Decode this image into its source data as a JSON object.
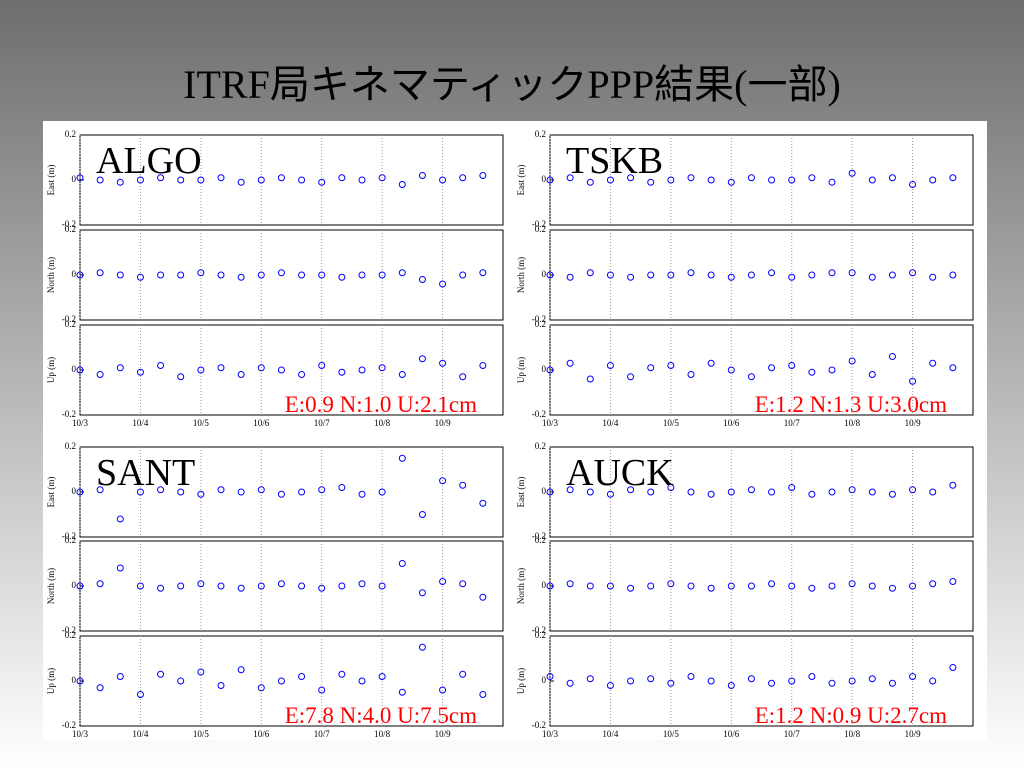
{
  "title": "ITRF局キネマティックPPP結果(一部)",
  "chart_data": [
    {
      "type": "scatter",
      "annotation": "ALGO",
      "ylabel": "East (m)",
      "color": "#0000ff",
      "xlim": [
        0,
        168
      ],
      "xticks": [
        0,
        24,
        48,
        72,
        96,
        120,
        144
      ],
      "ylim": [
        -0.2,
        0.2
      ],
      "yticks": [
        0.2,
        0,
        -0.2
      ],
      "x": [
        0,
        8,
        16,
        24,
        32,
        40,
        48,
        56,
        64,
        72,
        80,
        88,
        96,
        104,
        112,
        120,
        128,
        136,
        144,
        152,
        160
      ],
      "values": [
        0.01,
        0,
        -0.01,
        0,
        0.01,
        0,
        0,
        0.01,
        -0.01,
        0,
        0.01,
        0,
        -0.01,
        0.01,
        0,
        0.01,
        -0.02,
        0.02,
        0,
        0.01,
        0.02
      ]
    },
    {
      "type": "scatter",
      "ylabel": "North (m)",
      "color": "#0000ff",
      "xlim": [
        0,
        168
      ],
      "xticks": [
        0,
        24,
        48,
        72,
        96,
        120,
        144
      ],
      "ylim": [
        -0.2,
        0.2
      ],
      "yticks": [
        0.2,
        0,
        -0.2
      ],
      "x": [
        0,
        8,
        16,
        24,
        32,
        40,
        48,
        56,
        64,
        72,
        80,
        88,
        96,
        104,
        112,
        120,
        128,
        136,
        144,
        152,
        160
      ],
      "values": [
        0,
        0.01,
        0,
        -0.01,
        0,
        0,
        0.01,
        0,
        -0.01,
        0,
        0.01,
        0,
        0,
        -0.01,
        0,
        0,
        0.01,
        -0.02,
        -0.04,
        0,
        0.01
      ]
    },
    {
      "type": "scatter",
      "annotation": "E:0.9 N:1.0 U:2.1cm",
      "ylabel": "Up (m)",
      "color": "#0000ff",
      "xlim": [
        0,
        168
      ],
      "xticks": [
        {
          "value": 0,
          "label": "10/3"
        },
        {
          "value": 24,
          "label": "10/4"
        },
        {
          "value": 48,
          "label": "10/5"
        },
        {
          "value": 72,
          "label": "10/6"
        },
        {
          "value": 96,
          "label": "10/7"
        },
        {
          "value": 120,
          "label": "10/8"
        },
        {
          "value": 144,
          "label": "10/9"
        }
      ],
      "ylim": [
        -0.2,
        0.2
      ],
      "yticks": [
        0.2,
        0,
        -0.2
      ],
      "x": [
        0,
        8,
        16,
        24,
        32,
        40,
        48,
        56,
        64,
        72,
        80,
        88,
        96,
        104,
        112,
        120,
        128,
        136,
        144,
        152,
        160
      ],
      "values": [
        0,
        -0.02,
        0.01,
        -0.01,
        0.02,
        -0.03,
        0,
        0.01,
        -0.02,
        0.01,
        0,
        -0.02,
        0.02,
        -0.01,
        0,
        0.01,
        -0.02,
        0.05,
        0.03,
        -0.03,
        0.02
      ]
    },
    {
      "type": "scatter",
      "annotation": "TSKB",
      "ylabel": "East (m)",
      "color": "#0000ff",
      "xlim": [
        0,
        168
      ],
      "xticks": [
        0,
        24,
        48,
        72,
        96,
        120,
        144
      ],
      "ylim": [
        -0.2,
        0.2
      ],
      "yticks": [
        0.2,
        0,
        -0.2
      ],
      "x": [
        0,
        8,
        16,
        24,
        32,
        40,
        48,
        56,
        64,
        72,
        80,
        88,
        96,
        104,
        112,
        120,
        128,
        136,
        144,
        152,
        160
      ],
      "values": [
        0,
        0.01,
        -0.01,
        0,
        0.01,
        -0.01,
        0,
        0.01,
        0,
        -0.01,
        0.01,
        0,
        0,
        0.01,
        -0.01,
        0.03,
        0,
        0.01,
        -0.02,
        0,
        0.01
      ]
    },
    {
      "type": "scatter",
      "ylabel": "North (m)",
      "color": "#0000ff",
      "xlim": [
        0,
        168
      ],
      "xticks": [
        0,
        24,
        48,
        72,
        96,
        120,
        144
      ],
      "ylim": [
        -0.2,
        0.2
      ],
      "yticks": [
        0.2,
        0,
        -0.2
      ],
      "x": [
        0,
        8,
        16,
        24,
        32,
        40,
        48,
        56,
        64,
        72,
        80,
        88,
        96,
        104,
        112,
        120,
        128,
        136,
        144,
        152,
        160
      ],
      "values": [
        0,
        -0.01,
        0.01,
        0,
        -0.01,
        0,
        0,
        0.01,
        0,
        -0.01,
        0,
        0.01,
        -0.01,
        0,
        0.01,
        0.01,
        -0.01,
        0,
        0.01,
        -0.01,
        0
      ]
    },
    {
      "type": "scatter",
      "annotation": "E:1.2 N:1.3 U:3.0cm",
      "ylabel": "Up (m)",
      "color": "#0000ff",
      "xlim": [
        0,
        168
      ],
      "xticks": [
        {
          "value": 0,
          "label": "10/3"
        },
        {
          "value": 24,
          "label": "10/4"
        },
        {
          "value": 48,
          "label": "10/5"
        },
        {
          "value": 72,
          "label": "10/6"
        },
        {
          "value": 96,
          "label": "10/7"
        },
        {
          "value": 120,
          "label": "10/8"
        },
        {
          "value": 144,
          "label": "10/9"
        }
      ],
      "ylim": [
        -0.2,
        0.2
      ],
      "yticks": [
        0.2,
        0,
        -0.2
      ],
      "x": [
        0,
        8,
        16,
        24,
        32,
        40,
        48,
        56,
        64,
        72,
        80,
        88,
        96,
        104,
        112,
        120,
        128,
        136,
        144,
        152,
        160
      ],
      "values": [
        0,
        0.03,
        -0.04,
        0.02,
        -0.03,
        0.01,
        0.02,
        -0.02,
        0.03,
        0,
        -0.03,
        0.01,
        0.02,
        -0.01,
        0,
        0.04,
        -0.02,
        0.06,
        -0.05,
        0.03,
        0.01
      ]
    },
    {
      "type": "scatter",
      "annotation": "SANT",
      "ylabel": "East (m)",
      "color": "#0000ff",
      "xlim": [
        0,
        168
      ],
      "xticks": [
        0,
        24,
        48,
        72,
        96,
        120,
        144
      ],
      "ylim": [
        -0.2,
        0.2
      ],
      "yticks": [
        0.2,
        0,
        -0.2
      ],
      "x": [
        0,
        8,
        16,
        24,
        32,
        40,
        48,
        56,
        64,
        72,
        80,
        88,
        96,
        104,
        112,
        120,
        128,
        136,
        144,
        152,
        160
      ],
      "values": [
        0,
        0.01,
        -0.12,
        0,
        0.01,
        0,
        -0.01,
        0.01,
        0,
        0.01,
        -0.01,
        0,
        0.01,
        0.02,
        -0.01,
        0,
        0.15,
        -0.1,
        0.05,
        0.03,
        -0.05
      ]
    },
    {
      "type": "scatter",
      "ylabel": "North (m)",
      "color": "#0000ff",
      "xlim": [
        0,
        168
      ],
      "xticks": [
        0,
        24,
        48,
        72,
        96,
        120,
        144
      ],
      "ylim": [
        -0.2,
        0.2
      ],
      "yticks": [
        0.2,
        0,
        -0.2
      ],
      "x": [
        0,
        8,
        16,
        24,
        32,
        40,
        48,
        56,
        64,
        72,
        80,
        88,
        96,
        104,
        112,
        120,
        128,
        136,
        144,
        152,
        160
      ],
      "values": [
        0,
        0.01,
        0.08,
        0,
        -0.01,
        0,
        0.01,
        0,
        -0.01,
        0,
        0.01,
        0,
        -0.01,
        0,
        0.01,
        0,
        0.1,
        -0.03,
        0.02,
        0.01,
        -0.05
      ]
    },
    {
      "type": "scatter",
      "annotation": "E:7.8 N:4.0 U:7.5cm",
      "ylabel": "Up (m)",
      "color": "#0000ff",
      "xlim": [
        0,
        168
      ],
      "xticks": [
        {
          "value": 0,
          "label": "10/3"
        },
        {
          "value": 24,
          "label": "10/4"
        },
        {
          "value": 48,
          "label": "10/5"
        },
        {
          "value": 72,
          "label": "10/6"
        },
        {
          "value": 96,
          "label": "10/7"
        },
        {
          "value": 120,
          "label": "10/8"
        },
        {
          "value": 144,
          "label": "10/9"
        }
      ],
      "ylim": [
        -0.2,
        0.2
      ],
      "yticks": [
        0.2,
        0,
        -0.2
      ],
      "x": [
        0,
        8,
        16,
        24,
        32,
        40,
        48,
        56,
        64,
        72,
        80,
        88,
        96,
        104,
        112,
        120,
        128,
        136,
        144,
        152,
        160
      ],
      "values": [
        0,
        -0.03,
        0.02,
        -0.06,
        0.03,
        0,
        0.04,
        -0.02,
        0.05,
        -0.03,
        0,
        0.02,
        -0.04,
        0.03,
        0,
        0.02,
        -0.05,
        0.15,
        -0.04,
        0.03,
        -0.06
      ]
    },
    {
      "type": "scatter",
      "annotation": "AUCK",
      "ylabel": "East (m)",
      "color": "#0000ff",
      "xlim": [
        0,
        168
      ],
      "xticks": [
        0,
        24,
        48,
        72,
        96,
        120,
        144
      ],
      "ylim": [
        -0.2,
        0.2
      ],
      "yticks": [
        0.2,
        0,
        -0.2
      ],
      "x": [
        0,
        8,
        16,
        24,
        32,
        40,
        48,
        56,
        64,
        72,
        80,
        88,
        96,
        104,
        112,
        120,
        128,
        136,
        144,
        152,
        160
      ],
      "values": [
        0,
        0.01,
        0,
        -0.01,
        0.01,
        0,
        0.02,
        0,
        -0.01,
        0,
        0.01,
        0,
        0.02,
        -0.01,
        0,
        0.01,
        0,
        -0.01,
        0.01,
        0,
        0.03
      ]
    },
    {
      "type": "scatter",
      "ylabel": "North (m)",
      "color": "#0000ff",
      "xlim": [
        0,
        168
      ],
      "xticks": [
        0,
        24,
        48,
        72,
        96,
        120,
        144
      ],
      "ylim": [
        -0.2,
        0.2
      ],
      "yticks": [
        0.2,
        0,
        -0.2
      ],
      "x": [
        0,
        8,
        16,
        24,
        32,
        40,
        48,
        56,
        64,
        72,
        80,
        88,
        96,
        104,
        112,
        120,
        128,
        136,
        144,
        152,
        160
      ],
      "values": [
        0,
        0.01,
        0,
        0,
        -0.01,
        0,
        0.01,
        0,
        -0.01,
        0,
        0,
        0.01,
        0,
        -0.01,
        0,
        0.01,
        0,
        -0.01,
        0,
        0.01,
        0.02
      ]
    },
    {
      "type": "scatter",
      "annotation": "E:1.2 N:0.9 U:2.7cm",
      "ylabel": "Up (m)",
      "color": "#0000ff",
      "xlim": [
        0,
        168
      ],
      "xticks": [
        {
          "value": 0,
          "label": "10/3"
        },
        {
          "value": 24,
          "label": "10/4"
        },
        {
          "value": 48,
          "label": "10/5"
        },
        {
          "value": 72,
          "label": "10/6"
        },
        {
          "value": 96,
          "label": "10/7"
        },
        {
          "value": 120,
          "label": "10/8"
        },
        {
          "value": 144,
          "label": "10/9"
        }
      ],
      "ylim": [
        -0.2,
        0.2
      ],
      "yticks": [
        0.2,
        0,
        -0.2
      ],
      "x": [
        0,
        8,
        16,
        24,
        32,
        40,
        48,
        56,
        64,
        72,
        80,
        88,
        96,
        104,
        112,
        120,
        128,
        136,
        144,
        152,
        160
      ],
      "values": [
        0.02,
        -0.01,
        0.01,
        -0.02,
        0,
        0.01,
        -0.01,
        0.02,
        0,
        -0.02,
        0.01,
        -0.01,
        0,
        0.02,
        -0.01,
        0,
        0.01,
        -0.01,
        0.02,
        0,
        0.06
      ]
    }
  ]
}
